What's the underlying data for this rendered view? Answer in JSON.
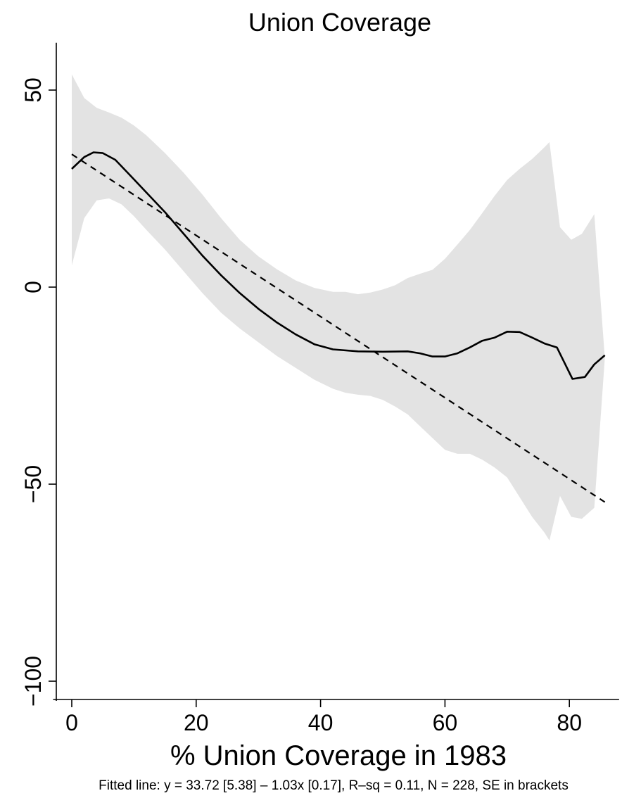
{
  "chart_data": {
    "type": "line",
    "title": "Union Coverage",
    "xlabel": "% Union Coverage in 1983",
    "ylabel": "",
    "note": "Fitted line: y = 33.72 [5.38] – 1.03x [0.17], R–sq = 0.11, N = 228, SE in brackets",
    "xlim": [
      -3,
      88
    ],
    "ylim": [
      -105,
      62
    ],
    "xticks": [
      0,
      20,
      40,
      60,
      80
    ],
    "yticks": [
      50,
      0,
      -50,
      -100
    ],
    "ytick_labels": [
      "50",
      "0",
      "−50",
      "−100"
    ],
    "grid": false,
    "series": [
      {
        "kind": "confidence-band",
        "color": "#e3e3e3",
        "x": [
          0,
          2,
          4,
          6,
          8,
          10,
          12,
          15,
          18,
          21,
          24,
          27,
          30,
          33,
          36,
          39,
          42,
          44,
          46,
          48,
          50,
          52,
          54,
          56,
          58,
          60,
          62,
          64,
          66,
          68,
          70,
          72,
          74,
          76,
          76.8,
          78.5,
          80.3,
          82,
          84,
          85.7
        ],
        "upper": [
          54,
          48,
          45.5,
          44.3,
          43,
          41,
          38.5,
          34,
          29,
          23.5,
          17.5,
          12,
          7.8,
          4.5,
          1.7,
          -0.2,
          -1.2,
          -1.2,
          -1.8,
          -1.4,
          -0.6,
          0.5,
          2.3,
          3.4,
          4.4,
          7.2,
          10.8,
          14.5,
          18.8,
          23.2,
          27.2,
          30,
          32.5,
          35.5,
          36.8,
          15.2,
          12,
          13.5,
          18.5,
          -18
        ],
        "lower": [
          5.5,
          17.5,
          22,
          22.5,
          21,
          18,
          14.5,
          9.5,
          4,
          -1.5,
          -6.5,
          -10.5,
          -14,
          -17.5,
          -20.5,
          -23.5,
          -25.8,
          -26.8,
          -27.3,
          -27.6,
          -28.6,
          -30.3,
          -32.3,
          -35.3,
          -38.3,
          -41.3,
          -42.3,
          -42.3,
          -43.8,
          -45.8,
          -48.3,
          -53.3,
          -58.3,
          -62.3,
          -64.3,
          -53,
          -58.3,
          -58.8,
          -56,
          -18
        ]
      },
      {
        "kind": "lowess",
        "color": "#000000",
        "x": [
          0,
          2,
          3.5,
          5,
          7,
          9,
          12,
          15,
          18,
          21,
          24,
          27,
          30,
          33,
          36,
          39,
          42,
          46,
          50,
          54,
          56,
          58,
          60,
          62,
          64,
          66,
          68,
          70,
          72,
          74,
          76,
          78,
          80.5,
          82.5,
          84,
          85.7
        ],
        "y": [
          30,
          33,
          34.2,
          34,
          32.3,
          29,
          24,
          19,
          13.5,
          8,
          3,
          -1.5,
          -5.5,
          -9,
          -12,
          -14.5,
          -15.8,
          -16.3,
          -16.4,
          -16.3,
          -16.8,
          -17.6,
          -17.6,
          -16.8,
          -15.3,
          -13.6,
          -12.8,
          -11.3,
          -11.4,
          -12.8,
          -14.3,
          -15.3,
          -23.3,
          -22.8,
          -19.6,
          -17.3
        ]
      },
      {
        "kind": "fitted-line",
        "color": "#000000",
        "intercept": 33.72,
        "slope": -1.03,
        "x_range": [
          0,
          85.7
        ]
      }
    ]
  }
}
